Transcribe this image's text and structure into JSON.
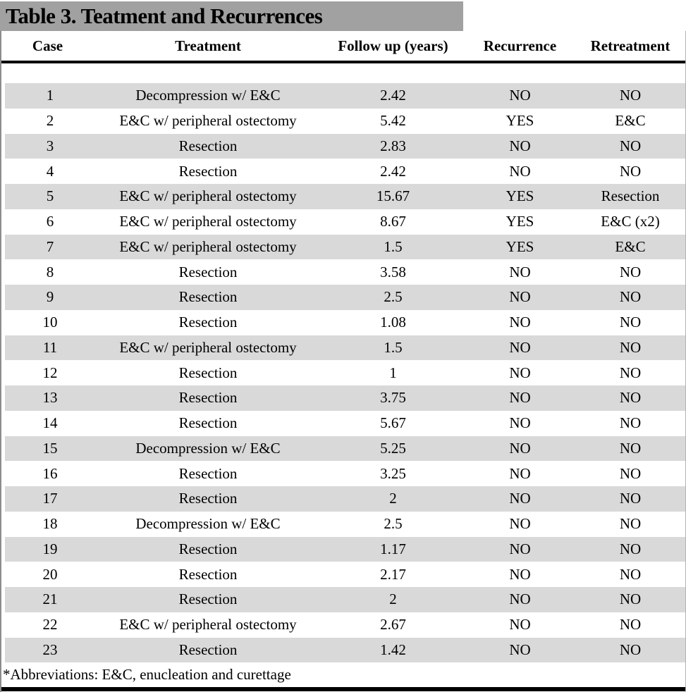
{
  "title": "Table 3. Teatment and Recurrences",
  "footnote": "*Abbreviations: E&C, enucleation and curettage",
  "colors": {
    "title_bar": "#a1a1a1",
    "row_shade": "#d9d9d9",
    "rule": "#000000",
    "side_border": "#8c8c8c"
  },
  "table": {
    "headers": [
      "Case",
      "Treatment",
      "Follow up (years)",
      "Recurrence",
      "Retreatment"
    ],
    "rows": [
      {
        "case": "1",
        "treatment": "Decompression w/ E&C",
        "followup": "2.42",
        "recurrence": "NO",
        "retreatment": "NO"
      },
      {
        "case": "2",
        "treatment": "E&C w/ peripheral ostectomy",
        "followup": "5.42",
        "recurrence": "YES",
        "retreatment": "E&C"
      },
      {
        "case": "3",
        "treatment": "Resection",
        "followup": "2.83",
        "recurrence": "NO",
        "retreatment": "NO"
      },
      {
        "case": "4",
        "treatment": "Resection",
        "followup": "2.42",
        "recurrence": "NO",
        "retreatment": "NO"
      },
      {
        "case": "5",
        "treatment": "E&C w/ peripheral ostectomy",
        "followup": "15.67",
        "recurrence": "YES",
        "retreatment": "Resection"
      },
      {
        "case": "6",
        "treatment": "E&C w/ peripheral ostectomy",
        "followup": "8.67",
        "recurrence": "YES",
        "retreatment": "E&C (x2)"
      },
      {
        "case": "7",
        "treatment": "E&C w/ peripheral ostectomy",
        "followup": "1.5",
        "recurrence": "YES",
        "retreatment": "E&C"
      },
      {
        "case": "8",
        "treatment": "Resection",
        "followup": "3.58",
        "recurrence": "NO",
        "retreatment": "NO"
      },
      {
        "case": "9",
        "treatment": "Resection",
        "followup": "2.5",
        "recurrence": "NO",
        "retreatment": "NO"
      },
      {
        "case": "10",
        "treatment": "Resection",
        "followup": "1.08",
        "recurrence": "NO",
        "retreatment": "NO"
      },
      {
        "case": "11",
        "treatment": "E&C w/ peripheral ostectomy",
        "followup": "1.5",
        "recurrence": "NO",
        "retreatment": "NO"
      },
      {
        "case": "12",
        "treatment": "Resection",
        "followup": "1",
        "recurrence": "NO",
        "retreatment": "NO"
      },
      {
        "case": "13",
        "treatment": "Resection",
        "followup": "3.75",
        "recurrence": "NO",
        "retreatment": "NO"
      },
      {
        "case": "14",
        "treatment": "Resection",
        "followup": "5.67",
        "recurrence": "NO",
        "retreatment": "NO"
      },
      {
        "case": "15",
        "treatment": "Decompression w/ E&C",
        "followup": "5.25",
        "recurrence": "NO",
        "retreatment": "NO"
      },
      {
        "case": "16",
        "treatment": "Resection",
        "followup": "3.25",
        "recurrence": "NO",
        "retreatment": "NO"
      },
      {
        "case": "17",
        "treatment": "Resection",
        "followup": "2",
        "recurrence": "NO",
        "retreatment": "NO"
      },
      {
        "case": "18",
        "treatment": "Decompression w/ E&C",
        "followup": "2.5",
        "recurrence": "NO",
        "retreatment": "NO"
      },
      {
        "case": "19",
        "treatment": "Resection",
        "followup": "1.17",
        "recurrence": "NO",
        "retreatment": "NO"
      },
      {
        "case": "20",
        "treatment": "Resection",
        "followup": "2.17",
        "recurrence": "NO",
        "retreatment": "NO"
      },
      {
        "case": "21",
        "treatment": "Resection",
        "followup": "2",
        "recurrence": "NO",
        "retreatment": "NO"
      },
      {
        "case": "22",
        "treatment": "E&C w/ peripheral ostectomy",
        "followup": "2.67",
        "recurrence": "NO",
        "retreatment": "NO"
      },
      {
        "case": "23",
        "treatment": "Resection",
        "followup": "1.42",
        "recurrence": "NO",
        "retreatment": "NO"
      }
    ]
  }
}
